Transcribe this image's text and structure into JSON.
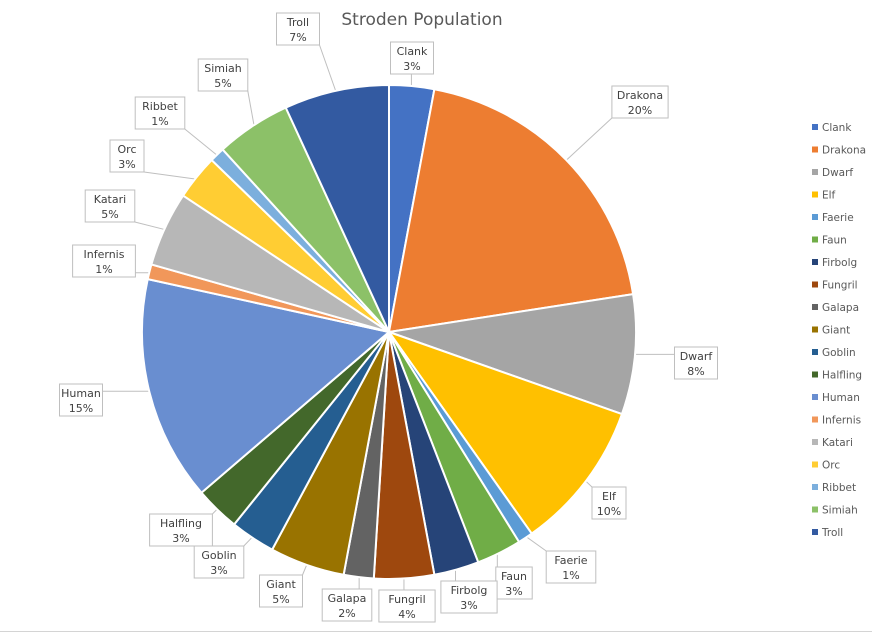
{
  "chart_data": {
    "type": "pie",
    "title": "Stroden Population",
    "legend_position": "right",
    "categories": [
      "Clank",
      "Drakona",
      "Dwarf",
      "Elf",
      "Faerie",
      "Faun",
      "Firbolg",
      "Fungril",
      "Galapa",
      "Giant",
      "Goblin",
      "Halfling",
      "Human",
      "Infernis",
      "Katari",
      "Orc",
      "Ribbet",
      "Simiah",
      "Troll"
    ],
    "values": [
      3,
      20,
      8,
      10,
      1,
      3,
      3,
      4,
      2,
      5,
      3,
      3,
      15,
      1,
      5,
      3,
      1,
      5,
      7
    ],
    "data_labels": [
      "3%",
      "20%",
      "8%",
      "10%",
      "1%",
      "3%",
      "3%",
      "4%",
      "2%",
      "5%",
      "3%",
      "3%",
      "15%",
      "1%",
      "5%",
      "3%",
      "1%",
      "5%",
      "7%"
    ],
    "colors": [
      "#4472C4",
      "#ED7D31",
      "#A5A5A5",
      "#FFC000",
      "#5B9BD5",
      "#70AD47",
      "#264478",
      "#9E480E",
      "#636363",
      "#997300",
      "#255E91",
      "#43682B",
      "#698ED0",
      "#F1975A",
      "#B7B7B7",
      "#FFCD33",
      "#7CAFDD",
      "#8CC168",
      "#335AA1"
    ]
  }
}
